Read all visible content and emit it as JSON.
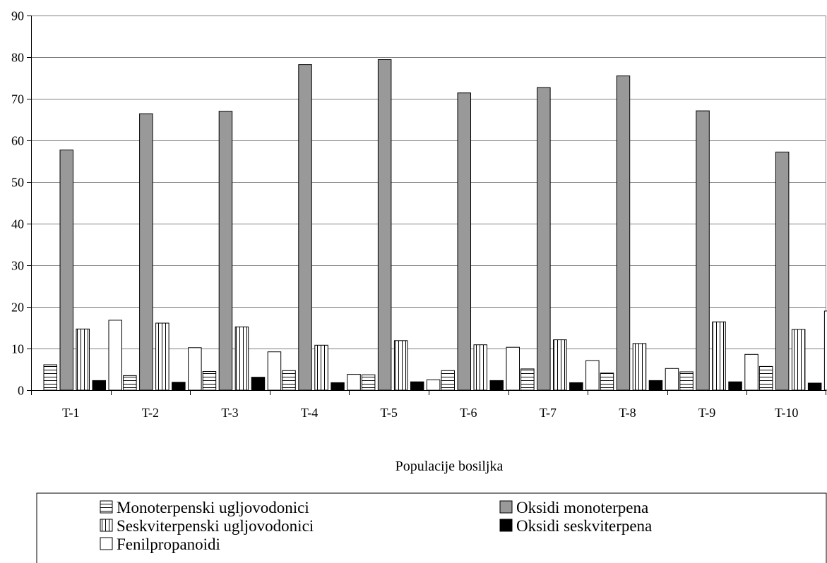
{
  "chart_data": {
    "type": "bar",
    "title": "",
    "xlabel": "Populacije bosiljka",
    "ylabel": "",
    "ylim": [
      0,
      90
    ],
    "yticks": [
      0,
      10,
      20,
      30,
      40,
      50,
      60,
      70,
      80,
      90
    ],
    "grid": true,
    "legend_position": "bottom",
    "categories": [
      "T-1",
      "T-2",
      "T-3",
      "T-4",
      "T-5",
      "T-6",
      "T-7",
      "T-8",
      "T-9",
      "T-10"
    ],
    "series": [
      {
        "name": "Monoterpenski ugljovodonici",
        "pattern": "horizontal-lines",
        "color": "#ffffff",
        "values": [
          6.1,
          3.5,
          4.5,
          4.7,
          3.7,
          4.7,
          5.1,
          4.1,
          4.4,
          5.7
        ]
      },
      {
        "name": "Oksidi monoterpena",
        "pattern": "solid",
        "color": "#999999",
        "values": [
          57.7,
          66.4,
          67.0,
          78.2,
          79.4,
          71.4,
          72.7,
          75.5,
          67.1,
          57.2
        ]
      },
      {
        "name": "Seskviterpenski ugljovodonici",
        "pattern": "vertical-lines",
        "color": "#ffffff",
        "values": [
          14.7,
          16.1,
          15.2,
          10.8,
          11.9,
          10.9,
          12.1,
          11.2,
          16.4,
          14.6
        ]
      },
      {
        "name": "Oksidi seskviterpena",
        "pattern": "solid",
        "color": "#000000",
        "values": [
          2.3,
          1.9,
          3.1,
          1.8,
          2.0,
          2.3,
          1.8,
          2.3,
          2.0,
          1.7
        ]
      },
      {
        "name": "Fenilpropanoidi",
        "pattern": "solid",
        "color": "#ffffff",
        "values": [
          16.8,
          10.2,
          9.2,
          3.8,
          2.5,
          10.3,
          7.1,
          5.2,
          8.6,
          19.0
        ]
      }
    ]
  }
}
